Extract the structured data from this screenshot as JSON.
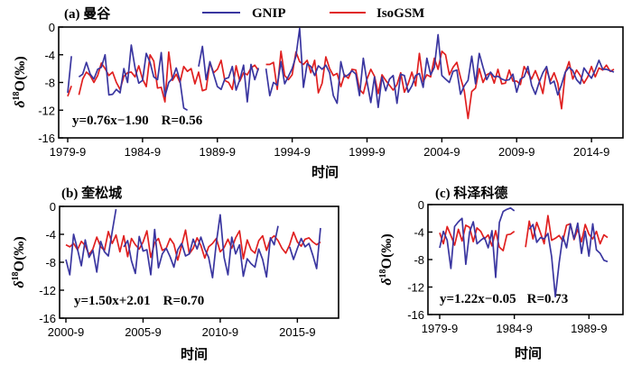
{
  "legend": [
    {
      "name": "GNIP",
      "color": "#3a36a0"
    },
    {
      "name": "IsoGSM",
      "color": "#e02020"
    }
  ],
  "chart_data": [
    {
      "type": "line",
      "title": "(a) 曼谷",
      "xlabel": "时间",
      "ylabel": "δ18O(‰)",
      "ylim": [
        -16,
        0
      ],
      "yticks": [
        0,
        -4,
        -8,
        -12,
        -16
      ],
      "xtick_labels": [
        "1979-9",
        "1984-9",
        "1989-9",
        "1994-9",
        "1999-9",
        "2004-9",
        "2009-9",
        "2014-9"
      ],
      "xtick_index": [
        0,
        20,
        40,
        60,
        80,
        100,
        120,
        140
      ],
      "x_count": 147,
      "equation": {
        "prefix": "y=0.76x−1.90",
        "r_label": "R=0.56"
      },
      "series": [
        {
          "name": "GNIP",
          "values": [
            -9.5,
            -4.2,
            null,
            -7.2,
            -6.8,
            -5.1,
            -6.8,
            -7.5,
            -6.1,
            -5.8,
            -4.0,
            -9.8,
            -9.7,
            -9.0,
            -9.5,
            -6.0,
            -8.0,
            -2.6,
            -5.9,
            -8.1,
            -7.7,
            -3.8,
            -5.1,
            -7.2,
            -7.6,
            -3.7,
            -10.0,
            -8.0,
            -7.4,
            -5.9,
            -7.7,
            -11.7,
            -12.0,
            null,
            null,
            -5.7,
            -2.8,
            -7.6,
            -5.0,
            -6.8,
            -8.6,
            -9.0,
            -7.5,
            -7.3,
            -5.7,
            -9.1,
            -7.6,
            -5.5,
            -10.8,
            -5.4,
            -7.6,
            -5.9,
            null,
            -6.0,
            -9.9,
            -8.0,
            -8.4,
            -5.0,
            -8.2,
            -7.1,
            -6.0,
            -4.2,
            -0.2,
            -8.7,
            -5.3,
            -5.7,
            -7.0,
            -5.6,
            -6.1,
            -5.5,
            -6.6,
            -9.9,
            -11.0,
            -5.0,
            -7.2,
            -6.9,
            -6.3,
            -6.8,
            -9.9,
            -4.5,
            -7.9,
            -10.9,
            -7.2,
            -11.6,
            -7.2,
            -9.2,
            -7.5,
            -7.0,
            -11.0,
            -6.8,
            -7.0,
            -9.4,
            -8.5,
            -7.0,
            -6.7,
            -8.7,
            -4.5,
            -6.9,
            -5.8,
            -1.1,
            -7.0,
            -7.5,
            -8.0,
            -6.4,
            -6.2,
            -9.7,
            -8.5,
            -7.7,
            -4.2,
            -8.2,
            -3.8,
            -5.8,
            -7.6,
            -6.5,
            -7.2,
            -7.1,
            -7.5,
            -7.7,
            -7.6,
            -6.8,
            -9.4,
            -7.5,
            -7.2,
            -5.7,
            -8.4,
            -9.7,
            -8.0,
            -6.6,
            -5.7,
            -8.2,
            -7.8,
            -9.8,
            -8.3,
            -6.5,
            -5.8,
            -6.3,
            -7.6,
            -8.2,
            -5.9,
            -6.7,
            -7.4,
            -6.2,
            -4.8,
            -6.1,
            -6.1,
            -6.3,
            -6.5
          ]
        },
        {
          "name": "IsoGSM",
          "values": [
            -10.0,
            -8.5,
            null,
            -9.8,
            -7.5,
            -6.5,
            -7.0,
            -8.0,
            -7.0,
            -5.2,
            -6.0,
            -7.0,
            -6.5,
            -8.0,
            -9.0,
            -7.1,
            -6.6,
            -6.5,
            -7.2,
            -5.6,
            -7.5,
            -8.6,
            -4.0,
            -4.9,
            -8.8,
            -8.7,
            -10.8,
            -3.6,
            -7.7,
            -6.8,
            -8.0,
            -5.7,
            -6.4,
            -6.0,
            -8.2,
            -6.5,
            -9.2,
            -9.0,
            -5.1,
            -6.6,
            -6.1,
            -4.8,
            -7.7,
            -8.0,
            -9.0,
            -5.6,
            -7.8,
            -6.6,
            -6.9,
            -5.9,
            -5.5,
            -6.3,
            null,
            -5.4,
            -5.4,
            -5.1,
            -9.0,
            -3.5,
            -7.0,
            -7.6,
            -6.9,
            -3.6,
            -5.0,
            -5.4,
            -4.8,
            -6.6,
            -4.8,
            -9.5,
            -8.1,
            -4.3,
            -6.0,
            -7.0,
            -6.7,
            -8.6,
            -6.9,
            -7.4,
            -6.1,
            -6.2,
            -9.0,
            -9.6,
            -7.5,
            -6.1,
            -7.1,
            -9.6,
            -6.9,
            -7.7,
            -8.4,
            -9.1,
            -8.3,
            -6.6,
            -9.4,
            -8.2,
            -6.5,
            -8.5,
            -3.8,
            -7.9,
            -6.9,
            -7.2,
            -4.5,
            -6.1,
            -3.5,
            -4.0,
            -6.9,
            -5.8,
            -5.1,
            -7.3,
            -9.2,
            -13.2,
            -9.3,
            -8.8,
            -6.0,
            -8.0,
            -6.9,
            -6.6,
            -8.1,
            -6.1,
            -8.2,
            -8.1,
            -6.2,
            -7.8,
            -7.8,
            -8.3,
            -5.7,
            -6.6,
            -7.5,
            -6.3,
            -7.7,
            -9.6,
            -6.1,
            -7.8,
            -6.6,
            -8.1,
            -11.8,
            -6.6,
            -5.0,
            -7.5,
            -6.2,
            -7.0,
            -8.1,
            -7.2,
            -5.7,
            -7.2,
            -5.9,
            -6.2,
            -5.5,
            -6.4,
            -6.1
          ]
        }
      ]
    },
    {
      "type": "line",
      "title": "(b) 奎松城",
      "xlabel": "时间",
      "ylabel": "δ18O(‰)",
      "ylim": [
        -16,
        0
      ],
      "yticks": [
        0,
        -4,
        -8,
        -12,
        -16
      ],
      "xtick_labels": [
        "2000-9",
        "2005-9",
        "2010-9",
        "2015-9"
      ],
      "xtick_index": [
        0,
        20,
        40,
        60
      ],
      "x_count": 67,
      "equation": {
        "prefix": "y=1.50x+2.01",
        "r_label": "R=0.70"
      },
      "series": [
        {
          "name": "GNIP",
          "values": [
            -7.6,
            -9.8,
            -4.0,
            -6.1,
            -8.5,
            -4.8,
            -7.3,
            -6.3,
            -9.4,
            -5.0,
            -6.5,
            -7.1,
            -3.6,
            -0.4,
            null,
            -5.8,
            -4.9,
            -7.8,
            -9.6,
            -4.3,
            -6.4,
            -6.2,
            -9.8,
            -3.3,
            -8.8,
            -6.8,
            -6.0,
            -7.2,
            -8.7,
            -6.2,
            -5.3,
            -7.1,
            -6.8,
            -4.7,
            -6.1,
            -4.4,
            -6.1,
            -7.3,
            -10.2,
            -5.2,
            -1.2,
            -7.3,
            -9.8,
            -4.4,
            -6.8,
            -5.5,
            -10.0,
            -7.5,
            -8.2,
            -8.7,
            -6.1,
            -7.6,
            -10.1,
            -4.5,
            -5.5,
            -2.8,
            null,
            null,
            -5.8,
            -7.6,
            -6.0,
            -4.6,
            -5.8,
            -5.3,
            -7.0,
            -8.9,
            -3.1
          ]
        },
        {
          "name": "IsoGSM",
          "values": [
            -5.5,
            -5.8,
            -5.3,
            -6.2,
            -5.0,
            -5.6,
            -6.9,
            -6.1,
            -4.4,
            -5.8,
            -6.3,
            -3.6,
            -5.3,
            -4.1,
            -6.5,
            -4.2,
            -7.2,
            -4.6,
            -5.5,
            -6.1,
            -5.1,
            -3.5,
            -7.3,
            -5.2,
            -4.6,
            -6.3,
            -6.0,
            -4.6,
            -5.4,
            -7.7,
            -5.6,
            -3.4,
            -6.8,
            -6.0,
            -4.5,
            -5.6,
            -7.4,
            -5.8,
            -5.3,
            -4.6,
            -6.5,
            -5.9,
            -4.7,
            -6.0,
            -4.5,
            -3.5,
            -7.5,
            -4.8,
            -6.2,
            -6.7,
            -4.9,
            -4.2,
            -6.3,
            -4.7,
            -4.2,
            -4.9,
            -6.0,
            -6.7,
            -5.5,
            -3.7,
            -5.1,
            -5.7,
            -4.7,
            -4.5,
            -5.1,
            -5.5,
            -5.1
          ]
        }
      ]
    },
    {
      "type": "line",
      "title": "(c) 科泽科德",
      "xlabel": "时间",
      "ylabel": "δ18O(‰)",
      "ylim": [
        -16,
        0
      ],
      "yticks": [
        0,
        -4,
        -8,
        -12,
        -16
      ],
      "xtick_labels": [
        "1979-9",
        "1984-9",
        "1989-9"
      ],
      "xtick_index": [
        0,
        20,
        40
      ],
      "x_count": 46,
      "equation": {
        "prefix": "y=1.22x−0.05",
        "r_label": "R=0.73"
      },
      "series": [
        {
          "name": "GNIP",
          "values": [
            -6.3,
            -3.9,
            -5.2,
            -9.3,
            -3.2,
            -2.5,
            -2.0,
            -8.7,
            -4.0,
            -2.5,
            -5.7,
            -5.2,
            -4.8,
            -6.3,
            -3.8,
            -10.6,
            -2.6,
            -1.0,
            -0.7,
            -0.5,
            -0.9,
            null,
            null,
            null,
            -3.6,
            -2.9,
            -5.5,
            -4.8,
            -5.0,
            -4.2,
            -7.6,
            -13.4,
            -8.5,
            -4.6,
            -6.3,
            -2.8,
            -5.0,
            -2.7,
            -7.1,
            -3.9,
            -7.5,
            -2.8,
            -6.6,
            -7.1,
            -8.1,
            -8.3
          ]
        },
        {
          "name": "IsoGSM",
          "values": [
            -4.1,
            -5.7,
            -3.2,
            -4.5,
            -5.9,
            -3.6,
            -5.3,
            -3.0,
            -3.3,
            -5.4,
            -3.4,
            -3.9,
            -5.0,
            -4.4,
            -6.0,
            -3.8,
            -6.2,
            -6.7,
            -4.4,
            -4.3,
            -3.9,
            null,
            null,
            -6.2,
            -2.4,
            -5.0,
            -2.6,
            -4.1,
            -5.7,
            -1.6,
            -5.2,
            -4.9,
            -4.5,
            -5.3,
            -3.0,
            -2.8,
            -5.1,
            -3.6,
            -5.4,
            -2.9,
            -4.3,
            -5.0,
            -3.9,
            -5.7,
            -4.4,
            -4.8
          ]
        }
      ]
    }
  ]
}
